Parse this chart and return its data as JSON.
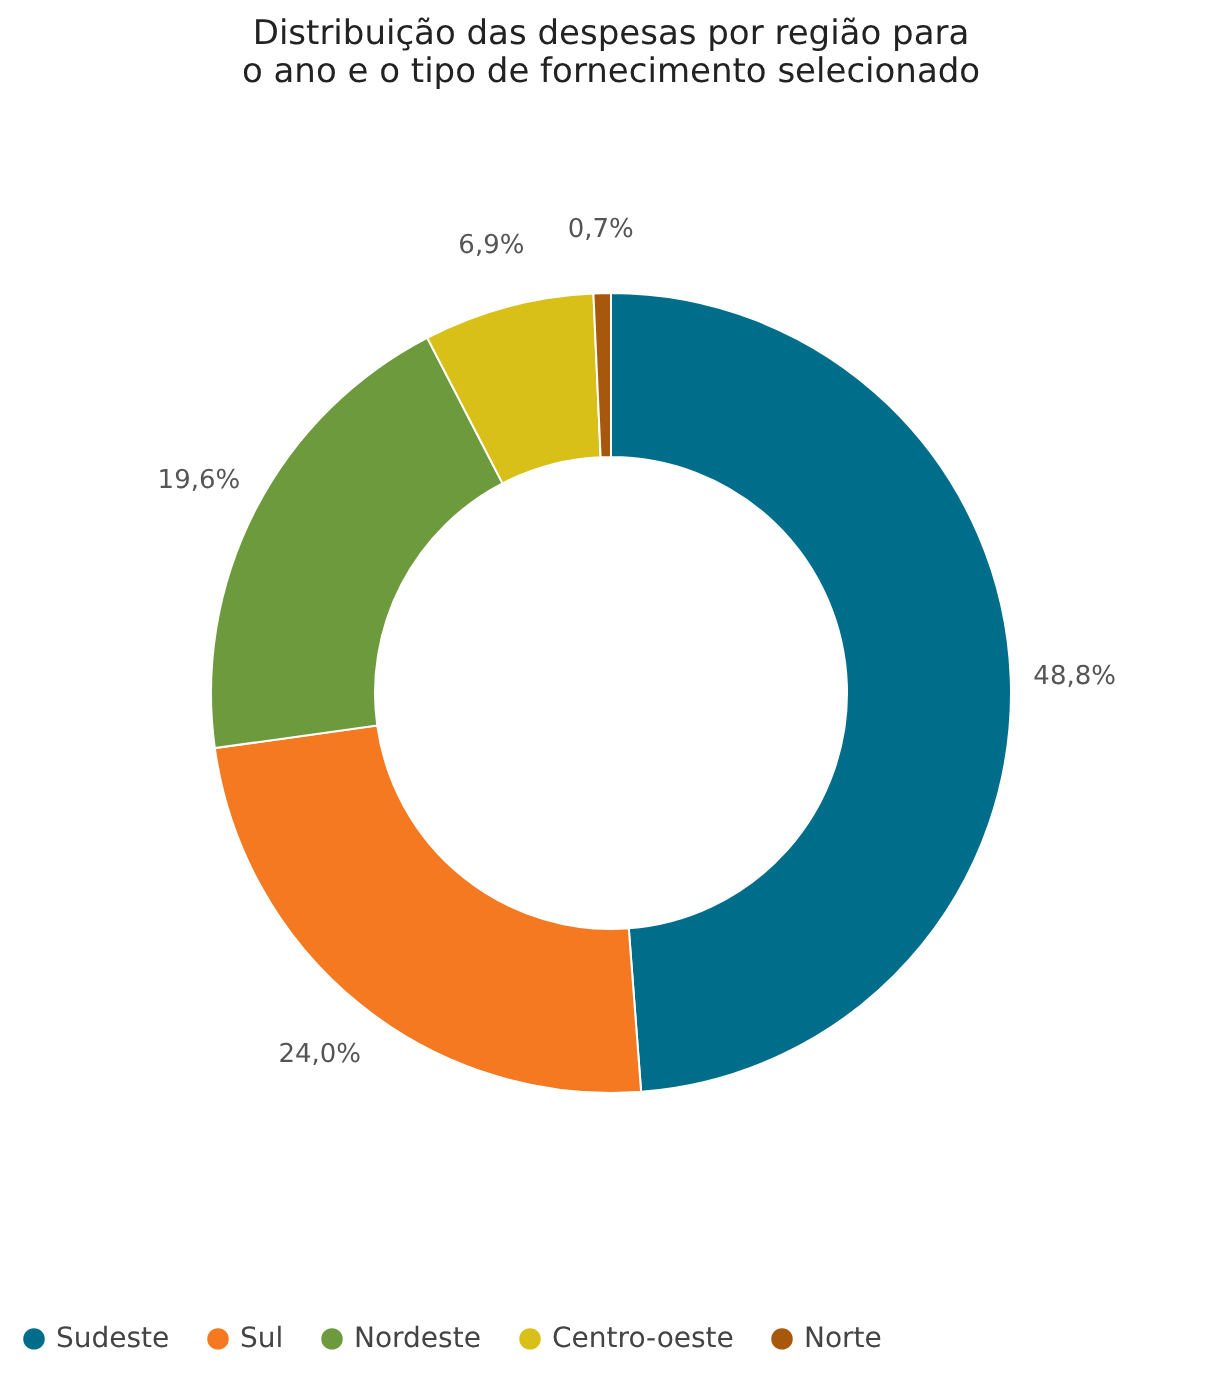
{
  "chart_data": {
    "type": "donut",
    "title": "Distribuição das despesas por região para o ano e o tipo de fornecimento selecionado",
    "categories": [
      "Sudeste",
      "Sul",
      "Nordeste",
      "Centro-oeste",
      "Norte"
    ],
    "values": [
      48.8,
      24.0,
      19.6,
      6.9,
      0.7
    ],
    "colors": [
      "#006e8a",
      "#f47920",
      "#6e9a3e",
      "#d8c019",
      "#a8580c"
    ],
    "value_labels": [
      "48,8%",
      "24,0%",
      "19,6%",
      "6,9%",
      "0,7%"
    ],
    "legend": "bottom"
  }
}
